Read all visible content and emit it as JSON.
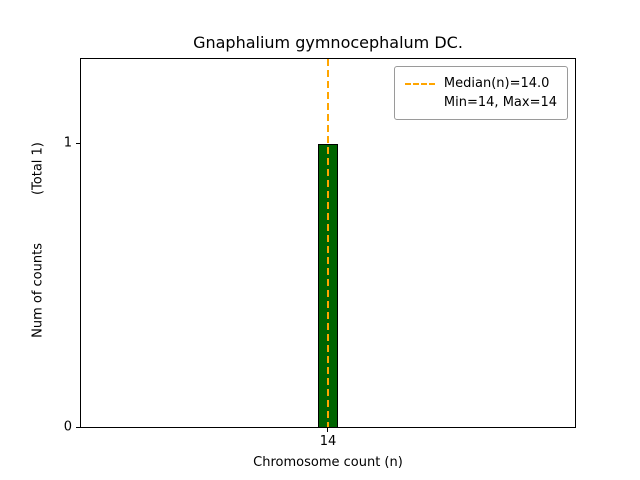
{
  "chart_data": {
    "type": "bar",
    "title": "Gnaphalium gymnocephalum DC.",
    "xlabel": "Chromosome count (n)",
    "ylabel": "Num of counts",
    "ylabel_total": "(Total 1)",
    "categories": [
      "14"
    ],
    "values": [
      1
    ],
    "ylim": [
      0,
      1.3
    ],
    "yticks": [
      0,
      1
    ],
    "ytick_labels": [
      "0",
      "1"
    ],
    "bar_color": "#006400",
    "bar_edge_color": "#000000",
    "median_line_color": "#ffa500",
    "median_line_style": "dashed",
    "grid": false,
    "legend_position": "top-right",
    "stats": {
      "median": 14.0,
      "min": 14,
      "max": 14
    },
    "legend": {
      "median_label": "Median(n)=14.0",
      "minmax_label": "Min=14, Max=14"
    }
  }
}
